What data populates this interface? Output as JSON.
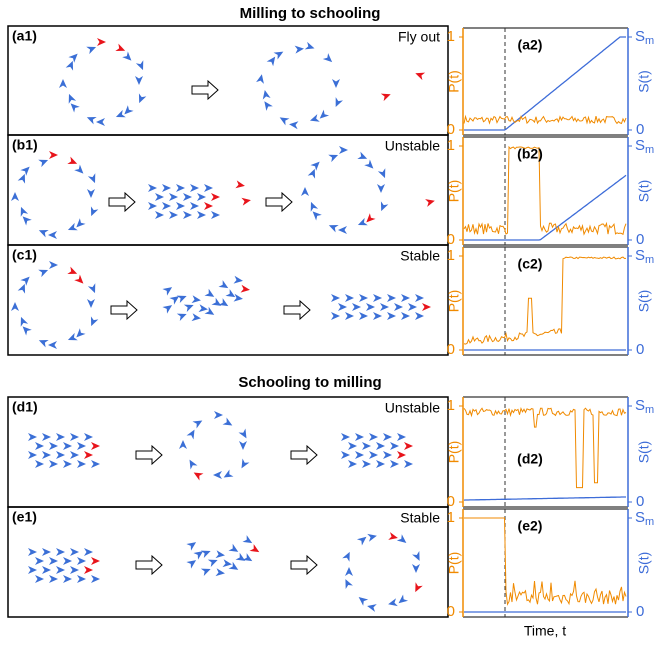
{
  "titles": {
    "top": "Milling to schooling",
    "bottom": "Schooling to milling"
  },
  "panels": [
    {
      "label": "(a1)",
      "caption": "Fly out"
    },
    {
      "label": "(b1)",
      "caption": "Unstable"
    },
    {
      "label": "(c1)",
      "caption": "Stable"
    },
    {
      "label": "(d1)",
      "caption": "Unstable"
    },
    {
      "label": "(e1)",
      "caption": "Stable"
    }
  ],
  "plots": [
    {
      "label": "(a2)"
    },
    {
      "label": "(b2)"
    },
    {
      "label": "(c2)"
    },
    {
      "label": "(d2)"
    },
    {
      "label": "(e2)"
    }
  ],
  "axes": {
    "p_label": "P(t)",
    "s_label": "S(t)",
    "p_low": "0",
    "p_high": "1",
    "s_low": "0",
    "s_high": "S",
    "s_high_sub": "m",
    "x_label": "Time, t"
  }
}
